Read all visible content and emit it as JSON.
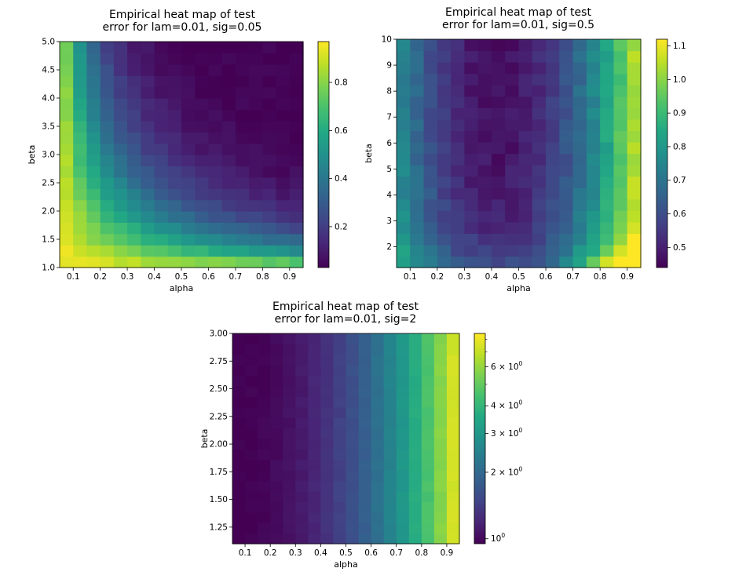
{
  "chart_data": [
    {
      "type": "heatmap",
      "title": "Empirical heat map of test\nerror for lam=0.01, sig=0.05",
      "xlabel": "alpha",
      "ylabel": "beta",
      "x_range": [
        0.05,
        0.95
      ],
      "y_range": [
        1.0,
        5.0
      ],
      "x_ticks": [
        "0.1",
        "0.2",
        "0.3",
        "0.4",
        "0.5",
        "0.6",
        "0.7",
        "0.8",
        "0.9"
      ],
      "y_ticks": [
        "1.0",
        "1.5",
        "2.0",
        "2.5",
        "3.0",
        "3.5",
        "4.0",
        "4.5",
        "5.0"
      ],
      "colorbar": {
        "scale": "linear",
        "range": [
          0.03,
          0.97
        ],
        "ticks": [
          "0.2",
          "0.4",
          "0.6",
          "0.8"
        ]
      },
      "grid_size": [
        18,
        20
      ],
      "colormap": "viridis",
      "pattern": "error high (~0.9) at small alpha and small beta, decaying along hyperbolic contours to ~0.05 for large alpha and beta"
    },
    {
      "type": "heatmap",
      "title": "Empirical heat map of test\nerror for lam=0.01, sig=0.5",
      "xlabel": "alpha",
      "ylabel": "beta",
      "x_range": [
        0.05,
        0.95
      ],
      "y_range": [
        1.2,
        10.0
      ],
      "x_ticks": [
        "0.1",
        "0.2",
        "0.3",
        "0.4",
        "0.5",
        "0.6",
        "0.7",
        "0.8",
        "0.9"
      ],
      "y_ticks": [
        "2",
        "3",
        "4",
        "5",
        "6",
        "7",
        "8",
        "9",
        "10"
      ],
      "colorbar": {
        "scale": "linear",
        "range": [
          0.44,
          1.12
        ],
        "ticks": [
          "0.5",
          "0.6",
          "0.7",
          "0.8",
          "0.9",
          "1.0",
          "1.1"
        ]
      },
      "grid_size": [
        18,
        20
      ],
      "colormap": "viridis",
      "pattern": "U-shaped valley: minimum (~0.45) around alpha 0.3-0.5 and beta 6-10, rising to ~0.75 at the edges and up to ~1.1 at large alpha with small beta"
    },
    {
      "type": "heatmap",
      "title": "Empirical heat map of test\nerror for lam=0.01, sig=2",
      "xlabel": "alpha",
      "ylabel": "beta",
      "x_range": [
        0.05,
        0.95
      ],
      "y_range": [
        1.1,
        3.0
      ],
      "x_ticks": [
        "0.1",
        "0.2",
        "0.3",
        "0.4",
        "0.5",
        "0.6",
        "0.7",
        "0.8",
        "0.9"
      ],
      "y_ticks": [
        "1.25",
        "1.50",
        "1.75",
        "2.00",
        "2.25",
        "2.50",
        "2.75",
        "3.00"
      ],
      "colorbar": {
        "scale": "log",
        "range": [
          0.95,
          8.5
        ],
        "ticks": [
          "10^0",
          "2×10^0",
          "3×10^0",
          "4×10^0",
          "6×10^0"
        ]
      },
      "grid_size": [
        18,
        20
      ],
      "colormap": "viridis",
      "pattern": "error increases monotonically with alpha from ~1 at alpha 0.1 to ~8 at alpha 0.9, nearly independent of beta"
    }
  ]
}
